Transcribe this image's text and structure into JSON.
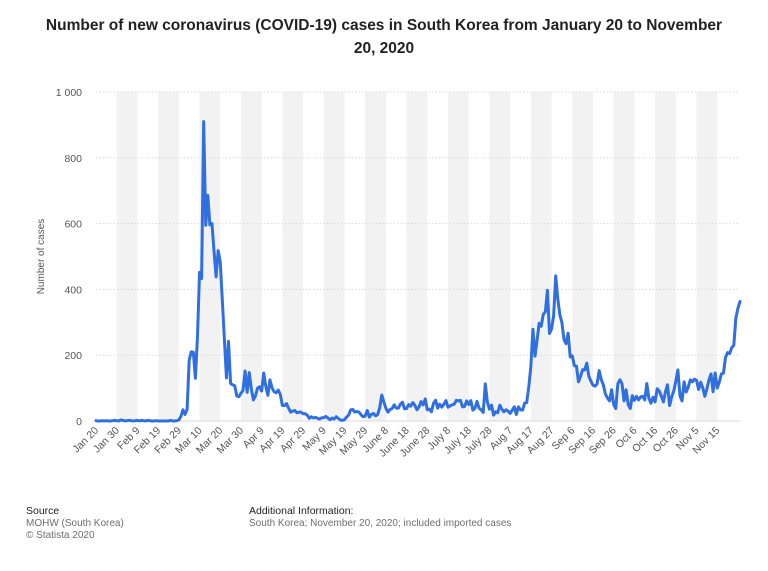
{
  "title_text": "Number of new coronavirus (COVID-19) cases in South Korea from January 20 to November 20, 2020",
  "footer": {
    "source_heading": "Source",
    "source_line1": "MOHW (South Korea)",
    "source_line2": "© Statista 2020",
    "info_heading": "Additional Information:",
    "info_line": "South Korea; November 20, 2020; included imported cases"
  },
  "colors": {
    "line": "#2f6fe0",
    "band": "#f2f2f2",
    "grid": "#d8d8d8",
    "text": "#555555"
  },
  "chart_data": {
    "type": "line",
    "title": "Number of new coronavirus (COVID-19) cases in South Korea from January 20 to November 20, 2020",
    "xlabel": "",
    "ylabel": "Number of cases",
    "ylim": [
      0,
      1000
    ],
    "y_ticks": [
      0,
      200,
      400,
      600,
      800,
      1000
    ],
    "y_tick_labels": [
      "0",
      "200",
      "400",
      "600",
      "800",
      "1 000"
    ],
    "x_tick_labels": [
      "Jan 20",
      "Jan 30",
      "Feb 9",
      "Feb 19",
      "Feb 29",
      "Mar 10",
      "Mar 20",
      "Mar 30",
      "Apr 9",
      "Apr 19",
      "Apr 29",
      "May 9",
      "May 19",
      "May 29",
      "June 8",
      "June 18",
      "June 28",
      "July 8",
      "July 18",
      "July 28",
      "Aug 7",
      "Aug 17",
      "Aug 27",
      "Sep 6",
      "Sep 16",
      "Sep 26",
      "Oct 6",
      "Oct 16",
      "Oct 26",
      "Nov 5",
      "Nov 15"
    ],
    "x_start": "2020-01-20",
    "x_end": "2020-11-20",
    "grid": true,
    "series": [
      {
        "values": [
          1,
          0,
          0,
          1,
          0,
          1,
          0,
          0,
          1,
          2,
          1,
          0,
          3,
          2,
          0,
          1,
          2,
          1,
          0,
          1,
          2,
          0,
          2,
          1,
          0,
          2,
          1,
          0,
          0,
          1,
          0,
          0,
          0,
          0,
          0,
          0,
          2,
          0,
          0,
          1,
          3,
          14,
          34,
          20,
          35,
          185,
          210,
          209,
          130,
          256,
          452,
          433,
          910,
          595,
          686,
          596,
          600,
          516,
          438,
          518,
          483,
          367,
          248,
          131,
          242,
          114,
          110,
          107,
          76,
          74,
          84,
          93,
          152,
          87,
          147,
          98,
          64,
          76,
          100,
          104,
          91,
          146,
          105,
          78,
          125,
          101,
          89,
          86,
          94,
          81,
          47,
          47,
          53,
          39,
          27,
          30,
          32,
          25,
          27,
          27,
          22,
          22,
          18,
          8,
          13,
          9,
          11,
          8,
          6,
          10,
          10,
          14,
          9,
          4,
          9,
          6,
          13,
          8,
          3,
          2,
          4,
          12,
          18,
          34,
          35,
          27,
          29,
          27,
          19,
          13,
          15,
          32,
          12,
          20,
          23,
          16,
          19,
          40,
          79,
          58,
          39,
          27,
          35,
          38,
          49,
          39,
          39,
          51,
          57,
          37,
          38,
          50,
          45,
          56,
          48,
          34,
          43,
          59,
          49,
          67,
          34,
          36,
          28,
          54,
          63,
          39,
          51,
          42,
          51,
          62,
          42,
          46,
          49,
          51,
          63,
          61,
          63,
          43,
          44,
          61,
          50,
          62,
          33,
          39,
          60,
          39,
          34,
          26,
          113,
          58,
          36,
          48,
          18,
          28,
          25,
          48,
          36,
          28,
          34,
          30,
          23,
          33,
          43,
          20,
          43,
          34,
          33,
          54,
          56,
          103,
          166,
          279,
          197,
          246,
          297,
          288,
          324,
          332,
          397,
          266,
          280,
          320,
          441,
          371,
          323,
          299,
          248,
          235,
          267,
          195,
          198,
          168,
          167,
          119,
          136,
          156,
          155,
          176,
          136,
          121,
          109,
          106,
          113,
          153,
          126,
          110,
          82,
          70,
          61,
          95,
          50,
          38,
          113,
          125,
          114,
          61,
          95,
          50,
          38,
          77,
          63,
          75,
          64,
          73,
          75,
          64,
          114,
          69,
          54,
          72,
          58,
          98,
          91,
          76,
          58,
          89,
          110,
          47,
          73,
          91,
          121,
          155,
          77,
          61,
          119,
          88,
          103,
          125,
          119,
          127,
          124,
          96,
          118,
          101,
          75,
          97,
          125,
          143,
          89,
          146,
          100,
          118,
          143,
          145,
          193,
          208,
          205,
          223,
          230,
          313,
          343,
          363
        ]
      }
    ]
  }
}
